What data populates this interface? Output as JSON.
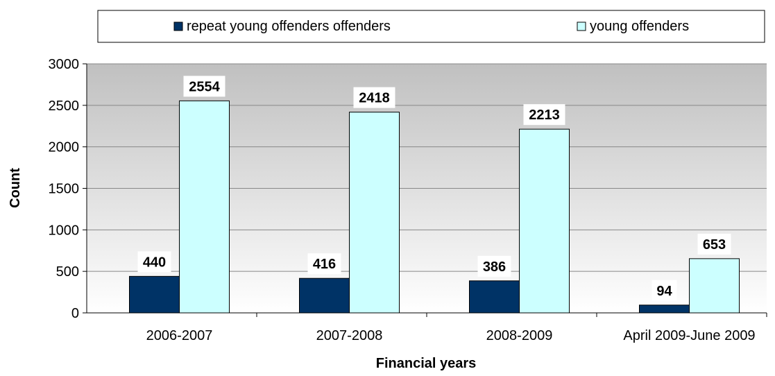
{
  "chart_data": {
    "type": "bar",
    "categories": [
      "2006-2007",
      "2007-2008",
      "2008-2009",
      "April 2009-June 2009"
    ],
    "series": [
      {
        "name": "repeat young offenders offenders",
        "values": [
          440,
          416,
          386,
          94
        ],
        "color": "#003366"
      },
      {
        "name": "young offenders",
        "values": [
          2554,
          2418,
          2213,
          653
        ],
        "color": "#ccffff"
      }
    ],
    "xlabel": "Financial years",
    "ylabel": "Count",
    "ylim": [
      0,
      3000
    ],
    "yticks": [
      0,
      500,
      1000,
      1500,
      2000,
      2500,
      3000
    ],
    "grid": true,
    "legend_position": "top",
    "plot_background": "gradient grey to white"
  }
}
